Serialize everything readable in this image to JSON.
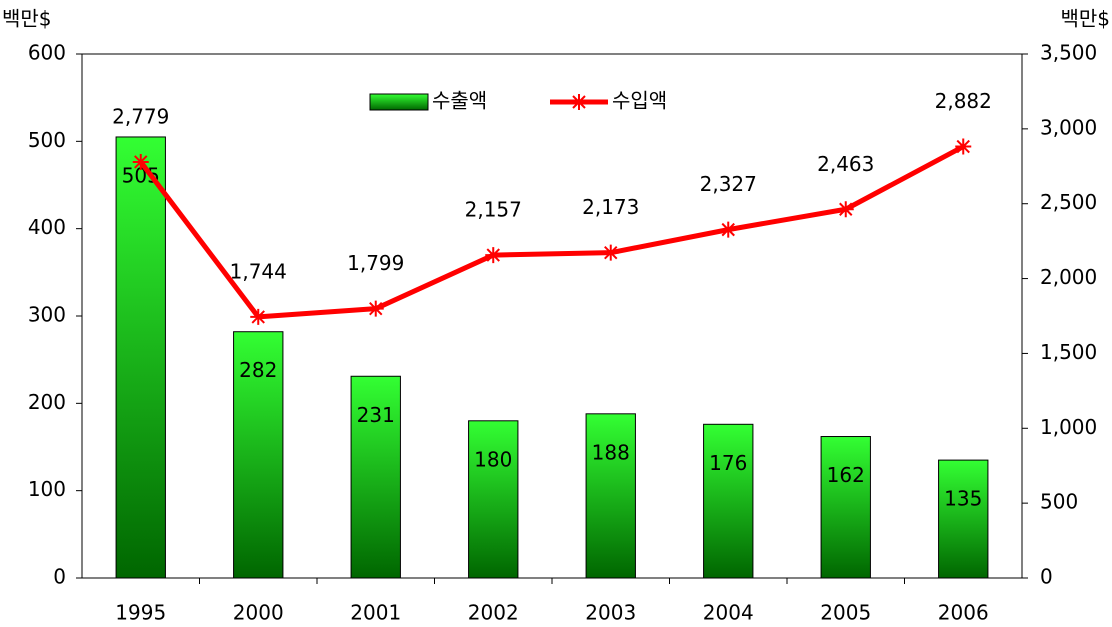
{
  "chart_data": {
    "type": "bar_line",
    "y_label": "백만$",
    "y2_label": "백만$",
    "categories": [
      "1995",
      "2000",
      "2001",
      "2002",
      "2003",
      "2004",
      "2005",
      "2006"
    ],
    "series": [
      {
        "name": "수출액",
        "type": "bar",
        "color": "#00cc00",
        "values": [
          505,
          282,
          231,
          180,
          188,
          176,
          162,
          135
        ]
      },
      {
        "name": "수입액",
        "type": "line",
        "axis": "y2",
        "color": "#ff0000",
        "values": [
          2779,
          1744,
          1799,
          2157,
          2173,
          2327,
          2463,
          2882
        ],
        "value_labels": [
          "2,779",
          "1,744",
          "1,799",
          "2,157",
          "2,173",
          "2,327",
          "2,463",
          "2,882"
        ]
      }
    ],
    "ylim": [
      0,
      600
    ],
    "yticks": [
      0,
      100,
      200,
      300,
      400,
      500,
      600
    ],
    "y2lim": [
      0,
      3500
    ],
    "y2ticks": [
      0,
      500,
      {
        "value": 1000,
        "label": "1,000"
      },
      {
        "value": 1500,
        "label": "1,500"
      },
      {
        "value": 2000,
        "label": "2,000"
      },
      {
        "value": 2500,
        "label": "2,500"
      },
      {
        "value": 3000,
        "label": "3,000"
      },
      {
        "value": 3500,
        "label": "3,500"
      }
    ],
    "grid": false
  }
}
